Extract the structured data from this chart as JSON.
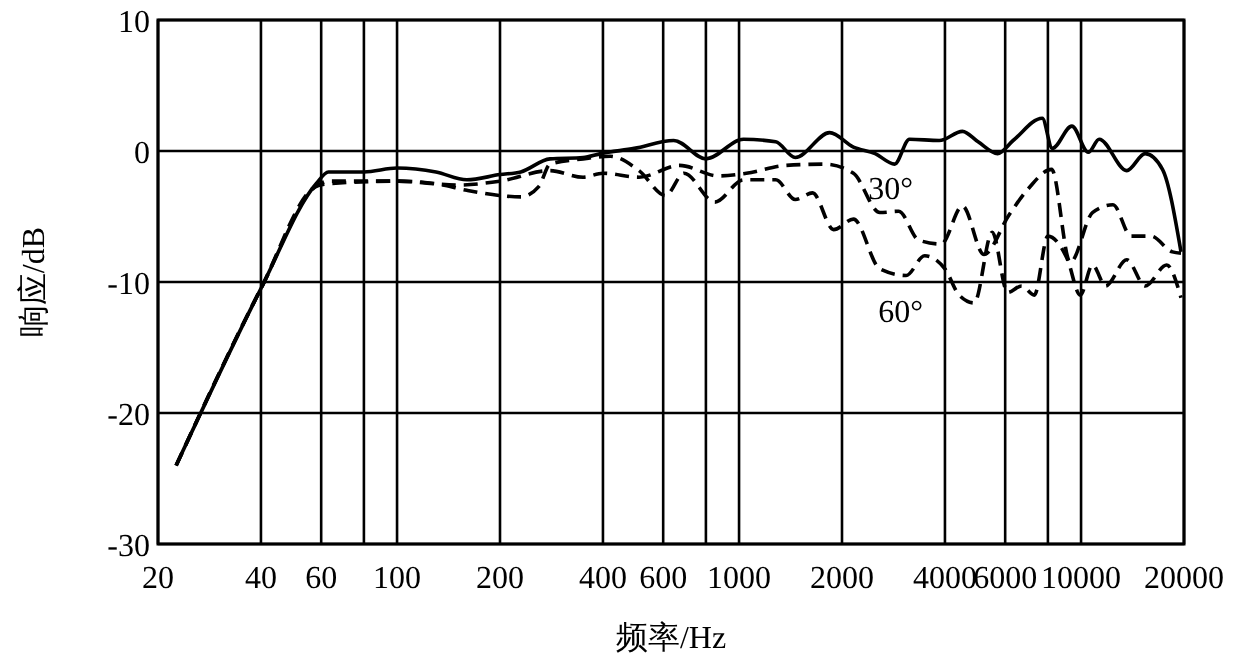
{
  "chart_data": {
    "type": "line",
    "xlabel": "频率/Hz",
    "ylabel": "响应/dB",
    "log": "x",
    "grid": true,
    "marker": "none",
    "xlim": [
      20,
      20000
    ],
    "ylim": [
      -30,
      10
    ],
    "xticks": [
      20,
      40,
      60,
      {
        "value": 80,
        "label": null
      },
      100,
      200,
      400,
      600,
      {
        "value": 800,
        "label": null
      },
      1000,
      2000,
      4000,
      6000,
      {
        "value": 8000,
        "label": null
      },
      10000,
      20000
    ],
    "yticks": [
      -30,
      -20,
      -10,
      0,
      10
    ],
    "series": [
      {
        "color": "#000000",
        "line_style": "solid",
        "x": [
          22.6,
          40,
          58,
          63,
          80,
          100,
          130,
          160,
          200,
          230,
          280,
          350,
          394,
          494,
          644,
          800,
          1030,
          1280,
          1460,
          1840,
          2160,
          2500,
          2850,
          3150,
          3850,
          4500,
          5000,
          5700,
          6330,
          7700,
          8240,
          9400,
          10500,
          11300,
          13600,
          15400,
          17300,
          19600
        ],
        "values": [
          -24,
          -10.5,
          -2.5,
          -1.6,
          -1.6,
          -1.3,
          -1.6,
          -2.2,
          -1.8,
          -1.6,
          -0.6,
          -0.5,
          -0.2,
          0.2,
          0.8,
          -0.6,
          0.9,
          0.7,
          -0.5,
          1.4,
          0.3,
          -0.2,
          -1,
          0.9,
          0.8,
          1.5,
          0.7,
          -0.2,
          0.8,
          2.5,
          0.2,
          1.9,
          -0.1,
          0.9,
          -1.5,
          -0.2,
          -1.4,
          -7.7
        ]
      },
      {
        "name": "30°",
        "color": "#000000",
        "line_style": "dashed",
        "x": [
          22.6,
          40,
          58,
          63,
          100,
          150,
          200,
          280,
          350,
          400,
          510,
          670,
          870,
          1050,
          1370,
          1780,
          2160,
          2580,
          2930,
          3350,
          3900,
          4500,
          5200,
          6150,
          7000,
          8200,
          9300,
          10800,
          12400,
          14000,
          16000,
          18500,
          19600
        ],
        "values": [
          -24,
          -10.5,
          -2.7,
          -2.3,
          -2.3,
          -2.6,
          -2.3,
          -1.5,
          -2,
          -1.7,
          -2,
          -1.1,
          -1.9,
          -1.7,
          -1.1,
          -1,
          -1.7,
          -4.7,
          -4.6,
          -6.8,
          -7.1,
          -4.2,
          -7.9,
          -4.9,
          -2.9,
          -1.4,
          -8.5,
          -4.7,
          -4.1,
          -6.5,
          -6.5,
          -7.7,
          -7.8
        ]
      },
      {
        "name": "60°",
        "color": "#000000",
        "line_style": "dashed",
        "x": [
          22.6,
          40,
          58,
          63,
          100,
          130,
          160,
          200,
          230,
          260,
          280,
          350,
          420,
          510,
          610,
          690,
          850,
          1030,
          1280,
          1460,
          1640,
          1890,
          2160,
          2580,
          3080,
          3490,
          4000,
          4400,
          4870,
          5500,
          6100,
          6700,
          7300,
          8000,
          9100,
          9950,
          10800,
          11800,
          13600,
          15400,
          17800,
          19600
        ],
        "values": [
          -24,
          -10.5,
          -2.7,
          -2.5,
          -2.3,
          -2.5,
          -3,
          -3.4,
          -3.5,
          -2.7,
          -1,
          -0.6,
          -0.4,
          -1.5,
          -3.4,
          -1.7,
          -3.9,
          -2.2,
          -2.2,
          -3.7,
          -3.2,
          -6,
          -5.2,
          -9,
          -9.5,
          -8,
          -9,
          -11,
          -11.6,
          -6.2,
          -10.8,
          -10.3,
          -11,
          -6.5,
          -8.2,
          -11,
          -8.7,
          -10.3,
          -8.3,
          -10.3,
          -8.7,
          -11.2
        ]
      }
    ]
  }
}
